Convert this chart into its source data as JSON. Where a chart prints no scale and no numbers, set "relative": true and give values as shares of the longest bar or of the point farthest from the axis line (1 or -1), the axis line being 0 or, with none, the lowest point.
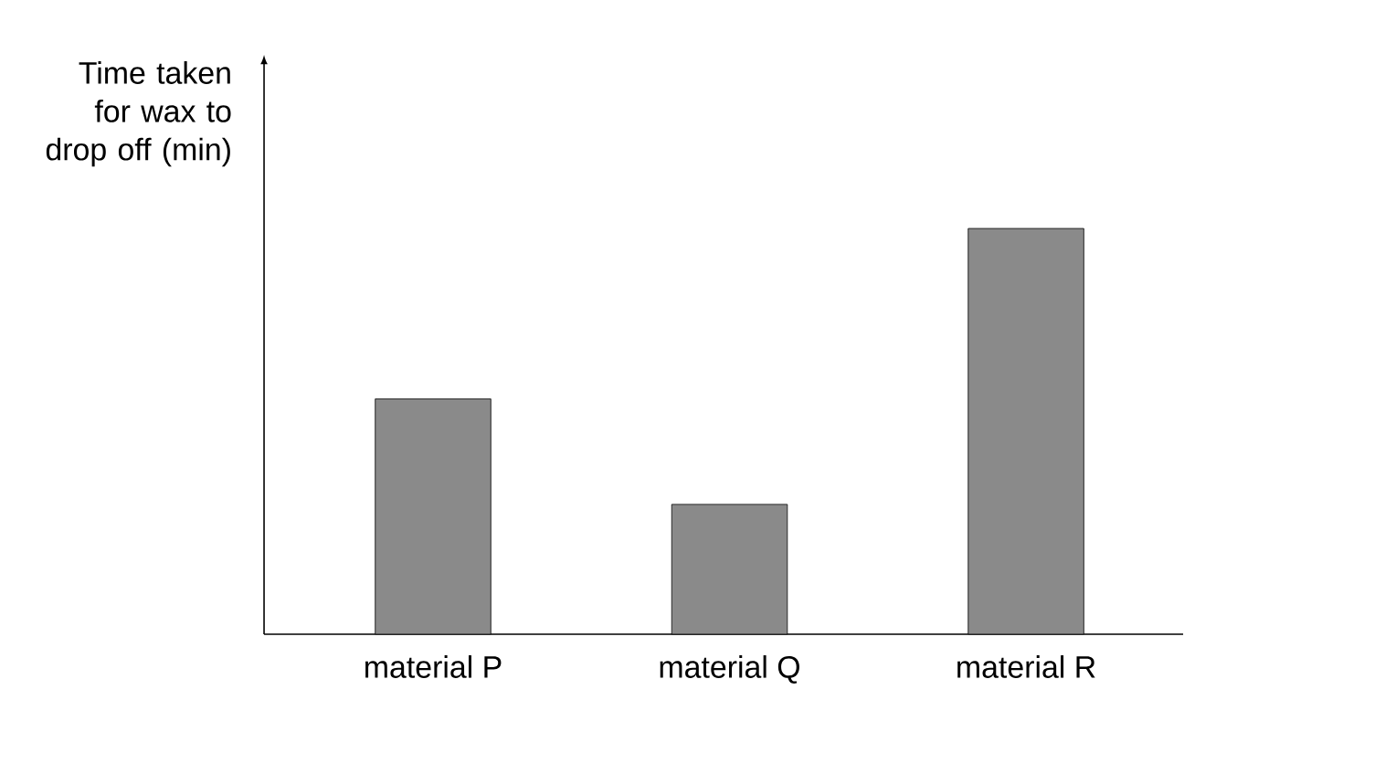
{
  "chart_data": {
    "type": "bar",
    "ylabel": "Time taken for wax to drop off (min)",
    "categories": [
      "material P",
      "material Q",
      "material R"
    ],
    "values": [
      0.58,
      0.32,
      1
    ],
    "relative": true,
    "color": "#8a8a8a"
  }
}
